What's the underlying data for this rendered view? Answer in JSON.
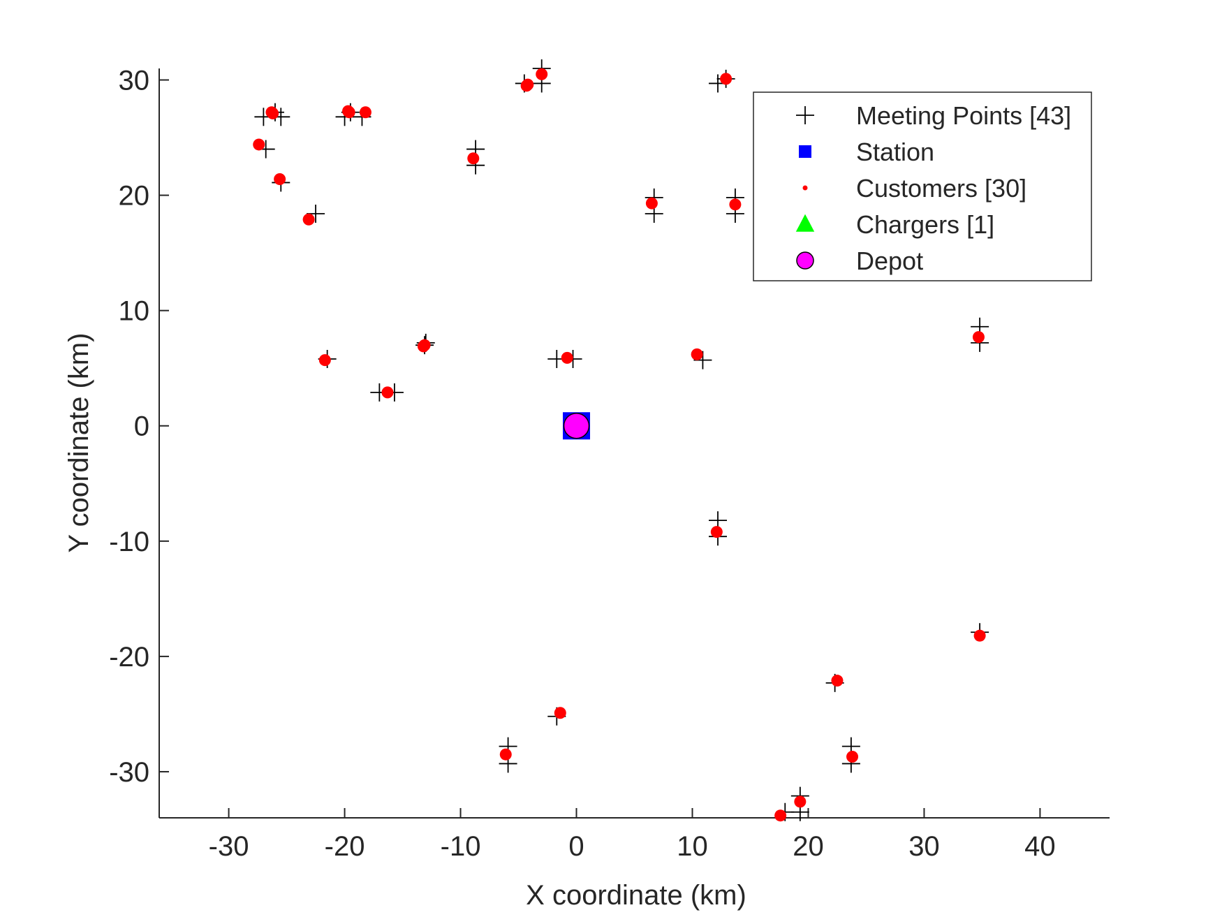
{
  "chart_data": {
    "type": "scatter",
    "title": "",
    "xlabel": "X coordinate (km)",
    "ylabel": "Y coordinate (km)",
    "xlim": [
      -36,
      46
    ],
    "ylim": [
      -34,
      31
    ],
    "xticks": [
      -30,
      -20,
      -10,
      0,
      10,
      20,
      30,
      40
    ],
    "yticks": [
      -30,
      -20,
      -10,
      0,
      10,
      20,
      30
    ],
    "grid": false,
    "legend_position": "top-right",
    "series": [
      {
        "name": "Meeting Points [43]",
        "marker": "plus",
        "color": "#000000",
        "points": [
          [
            -27,
            26.8
          ],
          [
            -25.5,
            26.8
          ],
          [
            -26.8,
            24
          ],
          [
            -25.5,
            21.1
          ],
          [
            -22.5,
            18.4
          ],
          [
            -20,
            26.8
          ],
          [
            -18.5,
            26.8
          ],
          [
            -8.7,
            24
          ],
          [
            -8.7,
            22.6
          ],
          [
            -4.5,
            29.7
          ],
          [
            -3,
            29.7
          ],
          [
            -3,
            31
          ],
          [
            12.2,
            29.7
          ],
          [
            6.7,
            19.8
          ],
          [
            6.7,
            18.4
          ],
          [
            13.7,
            19.8
          ],
          [
            13.7,
            18.4
          ],
          [
            -21.5,
            5.8
          ],
          [
            -17,
            2.9
          ],
          [
            -15.7,
            2.9
          ],
          [
            -13,
            7.2
          ],
          [
            -1.7,
            5.8
          ],
          [
            -0.3,
            5.8
          ],
          [
            10.9,
            5.7
          ],
          [
            34.8,
            8.6
          ],
          [
            34.8,
            7.2
          ],
          [
            12.2,
            -8.2
          ],
          [
            12.2,
            -9.6
          ],
          [
            34.8,
            -17.9
          ],
          [
            22.3,
            -22.3
          ],
          [
            -1.7,
            -25.2
          ],
          [
            -5.9,
            -27.8
          ],
          [
            -5.9,
            -29.3
          ],
          [
            23.7,
            -27.8
          ],
          [
            23.7,
            -29.3
          ],
          [
            19.3,
            -32.1
          ],
          [
            19.3,
            -33.5
          ],
          [
            18,
            -33.5
          ],
          [
            0,
            0
          ],
          [
            -26,
            27.2
          ],
          [
            -19.5,
            27.2
          ],
          [
            12.9,
            30.1
          ],
          [
            -13.1,
            7
          ]
        ]
      },
      {
        "name": "Station",
        "marker": "square",
        "color": "#0000ff",
        "points": [
          [
            0,
            0
          ]
        ]
      },
      {
        "name": "Customers [30]",
        "marker": "dot",
        "color": "#ff0000",
        "points": [
          [
            -26.3,
            27.2
          ],
          [
            -27.4,
            24.4
          ],
          [
            -25.6,
            21.4
          ],
          [
            -23.1,
            17.9
          ],
          [
            -19.6,
            27.2
          ],
          [
            -18.2,
            27.2
          ],
          [
            -8.9,
            23.2
          ],
          [
            -4.3,
            29.5
          ],
          [
            -3,
            30.5
          ],
          [
            12.9,
            30.1
          ],
          [
            6.5,
            19.3
          ],
          [
            13.7,
            19.2
          ],
          [
            -21.7,
            5.7
          ],
          [
            -16.3,
            2.9
          ],
          [
            -13.1,
            7
          ],
          [
            -0.8,
            5.9
          ],
          [
            10.4,
            6.2
          ],
          [
            34.7,
            7.7
          ],
          [
            12.1,
            -9.2
          ],
          [
            34.8,
            -18.2
          ],
          [
            22.5,
            -22.1
          ],
          [
            -1.4,
            -24.9
          ],
          [
            -6.1,
            -28.5
          ],
          [
            23.8,
            -28.7
          ],
          [
            19.3,
            -32.6
          ],
          [
            17.6,
            -33.8
          ],
          [
            -26.2,
            27.1
          ],
          [
            -13.2,
            6.9
          ],
          [
            -19.7,
            27.3
          ],
          [
            -4.2,
            29.6
          ]
        ]
      },
      {
        "name": "Chargers [1]",
        "marker": "triangle",
        "color": "#00ff00",
        "points": [
          [
            0,
            0
          ]
        ]
      },
      {
        "name": "Depot",
        "marker": "circle",
        "color": "#ff00ff",
        "points": [
          [
            0,
            0
          ]
        ]
      }
    ]
  }
}
